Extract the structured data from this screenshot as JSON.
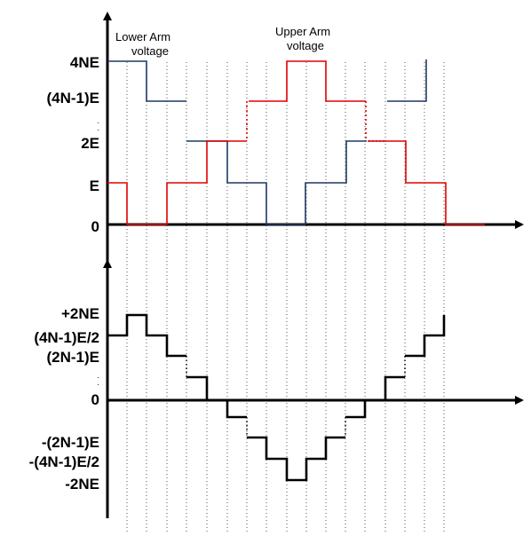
{
  "top_panel": {
    "y_tick_labels": [
      "4NE",
      "(4N-1)E",
      "2E",
      "E",
      "0"
    ],
    "annotations": {
      "lower_arm": [
        "Lower Arm",
        "voltage"
      ],
      "upper_arm": [
        "Upper Arm",
        "voltage"
      ]
    },
    "lower_arm_color": "#1f3864",
    "upper_arm_color": "#e00000"
  },
  "bottom_panel": {
    "y_tick_labels": [
      "+2NE",
      "(4N-1)E/2",
      "(2N-1)E",
      "0",
      "-(2N-1)E",
      "-(4N-1)E/2",
      "-2NE"
    ],
    "output_color": "#000000"
  }
}
